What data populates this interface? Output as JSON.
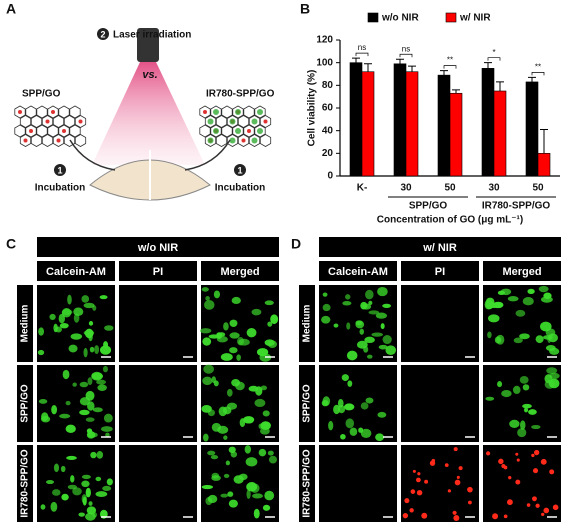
{
  "panel_a": {
    "label": "A",
    "step2": "2",
    "laser": "Laser irradiation",
    "left_sample": "SPP/GO",
    "vs": "vs.",
    "right_sample": "IR780-SPP/GO",
    "step1_left": "1",
    "incubation_left": "Incubation",
    "step1_right": "1",
    "incubation_right": "Incubation"
  },
  "chart_data": {
    "type": "bar",
    "label": "B",
    "ylabel": "Cell viability (%)",
    "xlabel": "Concentration of GO (μg mL⁻¹)",
    "categories": [
      "K-",
      "30",
      "50",
      "30",
      "50"
    ],
    "group_labels": [
      "SPP/GO",
      "IR780-SPP/GO"
    ],
    "series": [
      {
        "name": "w/o NIR",
        "color": "#000000",
        "values": [
          100,
          99,
          89,
          95,
          83
        ],
        "errors": [
          4,
          4,
          4,
          5,
          4
        ]
      },
      {
        "name": "w/ NIR",
        "color": "#ff0000",
        "values": [
          92,
          92,
          73,
          75,
          20
        ],
        "errors": [
          7,
          5,
          3,
          8,
          21
        ]
      }
    ],
    "significance": [
      "ns",
      "ns",
      "**",
      "*",
      "**"
    ],
    "ylim": [
      0,
      120
    ],
    "yticks": [
      0,
      20,
      40,
      60,
      80,
      100,
      120
    ]
  },
  "panel_c": {
    "label": "C",
    "header": "w/o NIR",
    "columns": [
      "Calcein-AM",
      "PI",
      "Merged"
    ],
    "rows": [
      "Medium",
      "SPP/GO",
      "IR780-SPP/GO"
    ]
  },
  "panel_d": {
    "label": "D",
    "header": "w/ NIR",
    "columns": [
      "Calcein-AM",
      "PI",
      "Merged"
    ],
    "rows": [
      "Medium",
      "SPP/GO",
      "IR780-SPP/GO"
    ]
  }
}
